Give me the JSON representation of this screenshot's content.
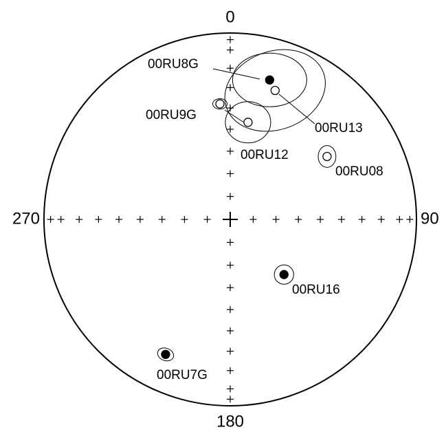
{
  "chart_data": {
    "type": "stereonet",
    "direction_labels": [
      0,
      90,
      180,
      270
    ],
    "points": [
      {
        "name": "00RU8G",
        "dec": 15.8,
        "inc": 23.3,
        "a95": [
          18,
          13,
          0
        ]
      },
      {
        "name": "00RU13",
        "dec": 19.2,
        "inc": -27.6,
        "a95": [
          25,
          19,
          -20
        ]
      },
      {
        "name": "00RU9G",
        "dec": 354.9,
        "inc": -37.8,
        "a95": [
          3.5,
          2.5,
          0
        ]
      },
      {
        "name": "00RU12",
        "dec": 10.4,
        "inc": -46,
        "a95": [
          11,
          10,
          0
        ]
      },
      {
        "name": "00RU08",
        "dec": 57,
        "inc": -38,
        "a95": [
          4.3,
          5.3,
          0
        ]
      },
      {
        "name": "00RU16",
        "dec": 135.7,
        "inc": 56,
        "a95": [
          4.7,
          4.7,
          0
        ]
      },
      {
        "name": "00RU7G",
        "dec": 205.6,
        "inc": 20.8,
        "a95": [
          4,
          3,
          20
        ]
      }
    ]
  }
}
